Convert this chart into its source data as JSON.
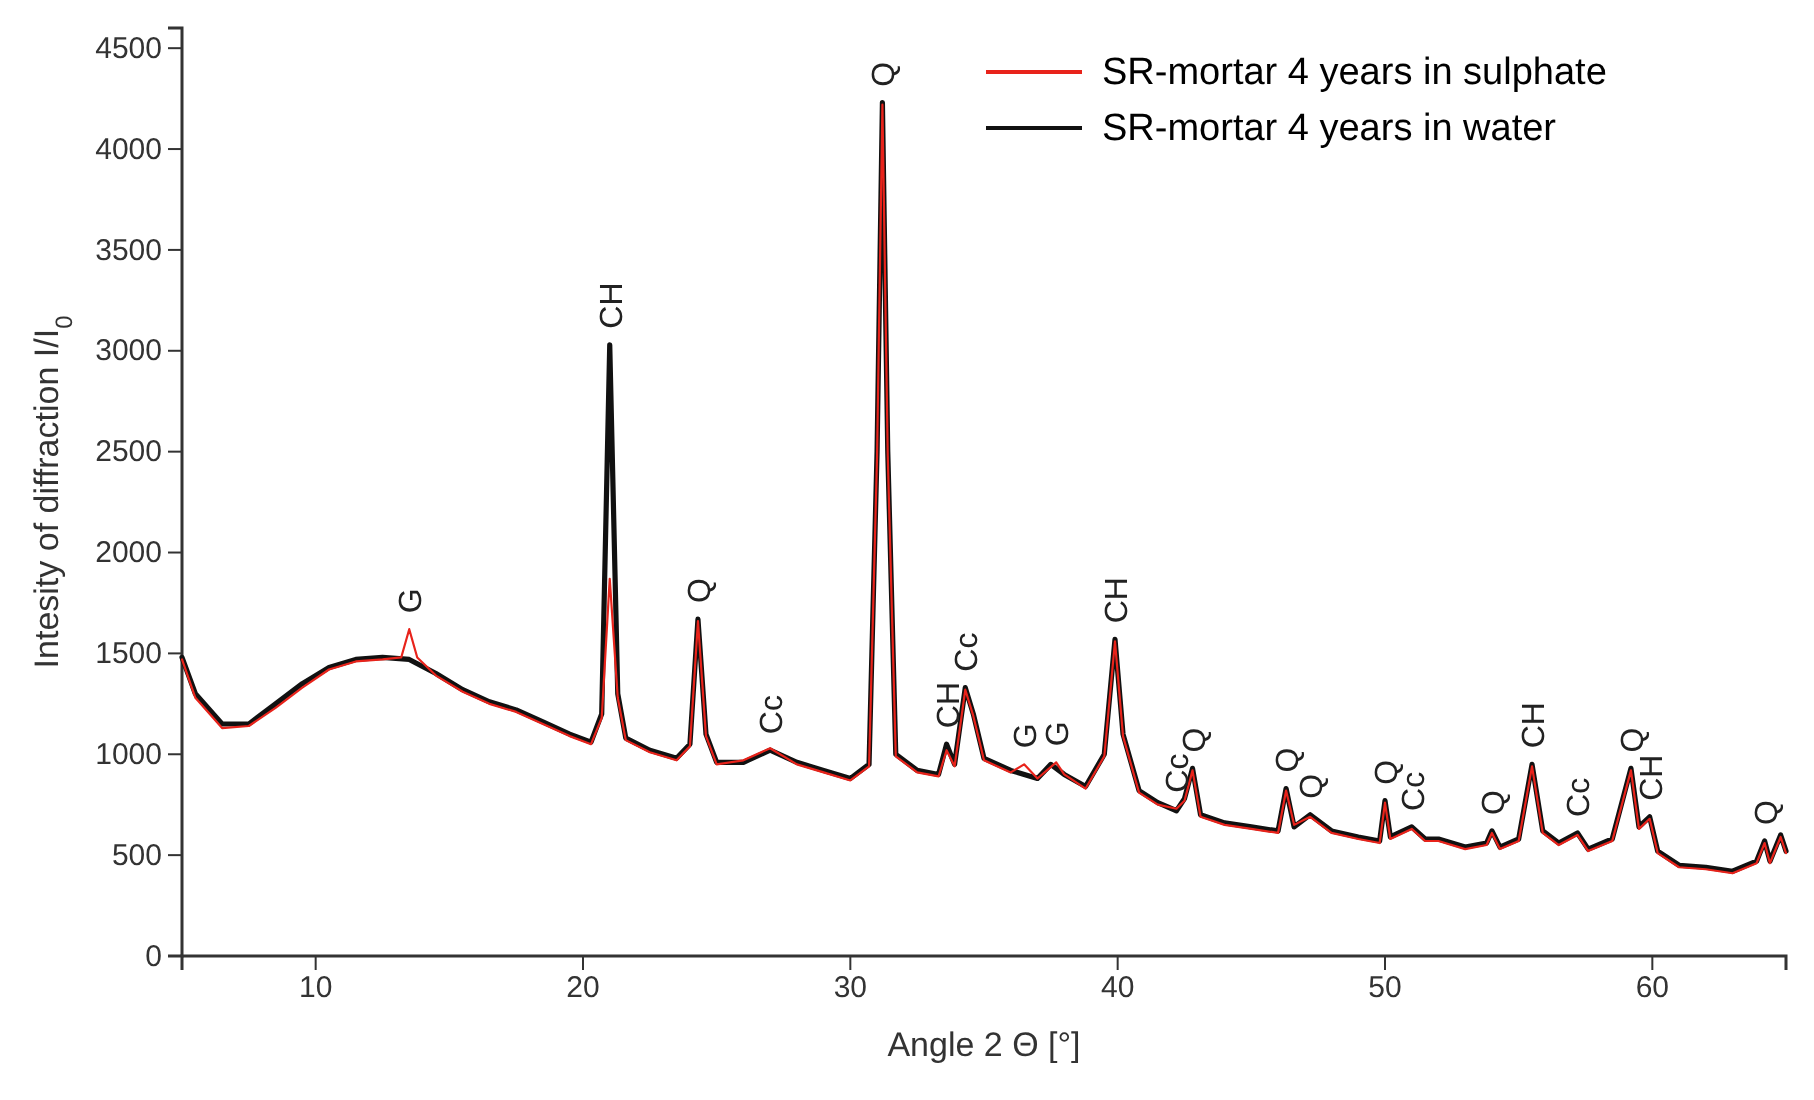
{
  "chart_data": {
    "type": "line",
    "xlabel": "Angle 2 Θ [°]",
    "ylabel": "Intesity of diffraction I/I$_{0}$",
    "xlim": [
      5,
      65
    ],
    "ylim": [
      0,
      4600
    ],
    "xticks": [
      10,
      20,
      30,
      40,
      50,
      60
    ],
    "yticks": [
      0,
      500,
      1000,
      1500,
      2000,
      2500,
      3000,
      3500,
      4000,
      4500
    ],
    "legend": "top right",
    "grid": false,
    "series": [
      {
        "name": "SR-mortar 4 years in water",
        "color": "#111111",
        "x": [
          5,
          5.5,
          6.5,
          7.5,
          8.5,
          9.5,
          10.5,
          11.5,
          12.5,
          13.5,
          14.5,
          15.5,
          16.5,
          17.5,
          18.5,
          19.5,
          20.3,
          20.7,
          21.0,
          21.3,
          21.6,
          22.5,
          23.5,
          24.0,
          24.3,
          24.6,
          25,
          26,
          27,
          28,
          29,
          30,
          30.7,
          31.0,
          31.2,
          31.4,
          31.7,
          32.5,
          33.3,
          33.6,
          33.9,
          34.3,
          34.6,
          35,
          36,
          37,
          37.5,
          38,
          38.8,
          39.5,
          39.9,
          40.2,
          40.8,
          41.5,
          42.2,
          42.5,
          42.8,
          43.1,
          44,
          45,
          46,
          46.3,
          46.6,
          47.2,
          48,
          49,
          49.8,
          50,
          50.2,
          51,
          51.5,
          52,
          53,
          53.8,
          54,
          54.3,
          55,
          55.5,
          55.9,
          56.5,
          57.2,
          57.6,
          58.5,
          59.2,
          59.5,
          59.9,
          60.2,
          61,
          62,
          63,
          63.9,
          64.2,
          64.4,
          64.8,
          65
        ],
        "values": [
          1480,
          1300,
          1150,
          1150,
          1250,
          1350,
          1430,
          1470,
          1480,
          1470,
          1400,
          1320,
          1260,
          1220,
          1160,
          1100,
          1060,
          1200,
          3030,
          1300,
          1080,
          1020,
          980,
          1050,
          1670,
          1100,
          960,
          960,
          1020,
          960,
          920,
          880,
          950,
          2500,
          4230,
          2500,
          1000,
          920,
          900,
          1050,
          950,
          1330,
          1200,
          980,
          920,
          880,
          950,
          900,
          840,
          1000,
          1570,
          1100,
          820,
          760,
          720,
          780,
          930,
          700,
          660,
          640,
          620,
          830,
          640,
          700,
          620,
          590,
          570,
          770,
          590,
          640,
          580,
          580,
          540,
          560,
          620,
          540,
          580,
          950,
          620,
          560,
          610,
          530,
          580,
          930,
          640,
          690,
          520,
          450,
          440,
          420,
          470,
          570,
          470,
          600,
          520
        ]
      },
      {
        "name": "SR-mortar 4 years in sulphate",
        "color": "#e8231b",
        "x": [
          5,
          5.5,
          6.5,
          7.5,
          8.5,
          9.5,
          10.5,
          11.5,
          12.5,
          13.2,
          13.5,
          13.8,
          14.5,
          15.5,
          16.5,
          17.5,
          18.5,
          19.5,
          20.3,
          20.7,
          21.0,
          21.3,
          21.6,
          22.5,
          23.5,
          24.0,
          24.3,
          24.6,
          25,
          26,
          27,
          28,
          29,
          30,
          30.7,
          31.0,
          31.2,
          31.4,
          31.7,
          32.5,
          33.3,
          33.6,
          33.9,
          34.3,
          34.6,
          35,
          36,
          36.5,
          37,
          37.7,
          38,
          38.8,
          39.5,
          39.9,
          40.2,
          40.8,
          41.5,
          42.2,
          42.5,
          42.8,
          43.1,
          44,
          45,
          46,
          46.3,
          46.6,
          47.2,
          48,
          49,
          49.8,
          50,
          50.2,
          51,
          51.5,
          52,
          53,
          53.8,
          54,
          54.3,
          55,
          55.5,
          55.9,
          56.5,
          57.2,
          57.6,
          58.5,
          59.2,
          59.5,
          59.9,
          60.2,
          61,
          62,
          63,
          63.9,
          64.2,
          64.4,
          64.8,
          65
        ],
        "values": [
          1470,
          1280,
          1130,
          1140,
          1230,
          1330,
          1420,
          1460,
          1470,
          1480,
          1620,
          1480,
          1390,
          1310,
          1250,
          1210,
          1150,
          1090,
          1050,
          1180,
          1870,
          1280,
          1070,
          1010,
          970,
          1040,
          1660,
          1090,
          950,
          970,
          1030,
          950,
          910,
          870,
          940,
          2480,
          4220,
          2480,
          990,
          910,
          890,
          1020,
          940,
          1320,
          1190,
          970,
          910,
          950,
          880,
          960,
          900,
          830,
          990,
          1560,
          1090,
          810,
          750,
          730,
          770,
          920,
          690,
          650,
          630,
          610,
          820,
          650,
          690,
          610,
          580,
          560,
          760,
          580,
          630,
          570,
          570,
          530,
          550,
          610,
          530,
          570,
          940,
          610,
          550,
          600,
          520,
          570,
          920,
          630,
          680,
          510,
          440,
          430,
          410,
          460,
          560,
          460,
          590,
          510
        ]
      }
    ],
    "annotations": [
      {
        "text": "G",
        "x": 13.5,
        "y": 1620
      },
      {
        "text": "CH",
        "x": 21.0,
        "y": 3030
      },
      {
        "text": "Q",
        "x": 24.3,
        "y": 1670
      },
      {
        "text": "Cc",
        "x": 27,
        "y": 1020
      },
      {
        "text": "Q",
        "x": 31.2,
        "y": 4230
      },
      {
        "text": "CH",
        "x": 33.6,
        "y": 1050
      },
      {
        "text": "Cc",
        "x": 34.3,
        "y": 1330
      },
      {
        "text": "G",
        "x": 36.5,
        "y": 950
      },
      {
        "text": "G",
        "x": 37.7,
        "y": 960
      },
      {
        "text": "CH",
        "x": 39.9,
        "y": 1570
      },
      {
        "text": "Cc",
        "x": 42.2,
        "y": 730
      },
      {
        "text": "Q",
        "x": 42.8,
        "y": 930
      },
      {
        "text": "Q",
        "x": 46.3,
        "y": 830
      },
      {
        "text": "Q",
        "x": 47.2,
        "y": 700
      },
      {
        "text": "Q",
        "x": 50,
        "y": 770
      },
      {
        "text": "Cc",
        "x": 51,
        "y": 640
      },
      {
        "text": "Q",
        "x": 54,
        "y": 620
      },
      {
        "text": "CH",
        "x": 55.5,
        "y": 950
      },
      {
        "text": "Cc",
        "x": 57.2,
        "y": 610
      },
      {
        "text": "Q",
        "x": 59.2,
        "y": 930
      },
      {
        "text": "CH",
        "x": 59.9,
        "y": 690
      },
      {
        "text": "Q",
        "x": 64.2,
        "y": 570
      }
    ]
  }
}
